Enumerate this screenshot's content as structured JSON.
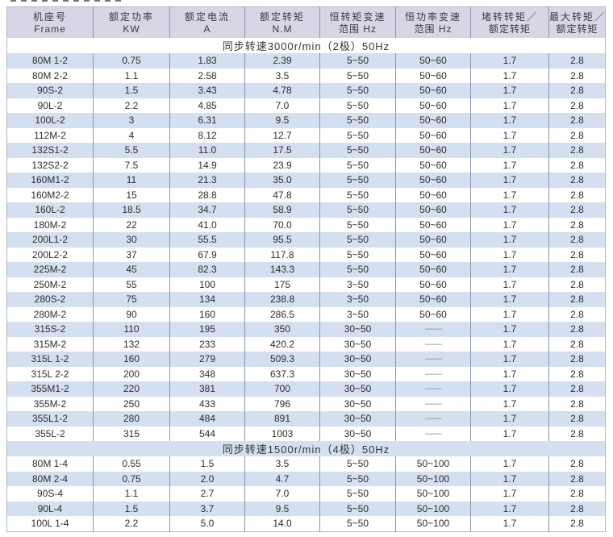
{
  "colors": {
    "header_bg": "#d8d5e7",
    "stripe_bg": "#d4dfef",
    "divider": "#8d95ad",
    "border": "#b2b6c4",
    "text": "#2e2e2e"
  },
  "table": {
    "columns": [
      {
        "key": "frame",
        "line1": "机座号",
        "line2": "Frame"
      },
      {
        "key": "rated-power",
        "line1": "额定功率",
        "line2": "KW"
      },
      {
        "key": "rated-current",
        "line1": "额定电流",
        "line2": "A"
      },
      {
        "key": "rated-torque",
        "line1": "额定转矩",
        "line2": "N.M"
      },
      {
        "key": "constant-torque-range",
        "line1": "恒转矩变速",
        "line2": "范围 Hz"
      },
      {
        "key": "constant-power-range",
        "line1": "恒功率变速",
        "line2": "范围 Hz"
      },
      {
        "key": "locked-rotor-torque-ratio",
        "line1": "堵转转矩／",
        "line2": "额定转矩"
      },
      {
        "key": "max-torque-ratio",
        "line1": "最大转矩／",
        "line2": "额定转矩"
      }
    ],
    "sections": [
      {
        "title": "同步转速3000r/min（2极）50Hz",
        "rows": [
          [
            "80M 1-2",
            "0.75",
            "1.83",
            "2.39",
            "5~50",
            "50~60",
            "1.7",
            "2.8"
          ],
          [
            "80M 2-2",
            "1.1",
            "2.58",
            "3.5",
            "5~50",
            "50~60",
            "1.7",
            "2.8"
          ],
          [
            "90S-2",
            "1.5",
            "3.43",
            "4.78",
            "5~50",
            "50~60",
            "1.7",
            "2.8"
          ],
          [
            "90L-2",
            "2.2",
            "4.85",
            "7.0",
            "5~50",
            "50~60",
            "1.7",
            "2.8"
          ],
          [
            "100L-2",
            "3",
            "6.31",
            "9.5",
            "5~50",
            "50~60",
            "1.7",
            "2.8"
          ],
          [
            "112M-2",
            "4",
            "8.12",
            "12.7",
            "5~50",
            "50~60",
            "1.7",
            "2.8"
          ],
          [
            "132S1-2",
            "5.5",
            "11.0",
            "17.5",
            "5~50",
            "50~60",
            "1.7",
            "2.8"
          ],
          [
            "132S2-2",
            "7.5",
            "14.9",
            "23.9",
            "5~50",
            "50~60",
            "1.7",
            "2.8"
          ],
          [
            "160M1-2",
            "11",
            "21.3",
            "35.0",
            "5~50",
            "50~60",
            "1.7",
            "2.8"
          ],
          [
            "160M2-2",
            "15",
            "28.8",
            "47.8",
            "5~50",
            "50~60",
            "1.7",
            "2.8"
          ],
          [
            "160L-2",
            "18.5",
            "34.7",
            "58.9",
            "5~50",
            "50~60",
            "1.7",
            "2.8"
          ],
          [
            "180M-2",
            "22",
            "41.0",
            "70.0",
            "5~50",
            "50~60",
            "1.7",
            "2.8"
          ],
          [
            "200L1-2",
            "30",
            "55.5",
            "95.5",
            "5~50",
            "50~60",
            "1.7",
            "2.8"
          ],
          [
            "200L2-2",
            "37",
            "67.9",
            "117.8",
            "5~50",
            "50~60",
            "1.7",
            "2.8"
          ],
          [
            "225M-2",
            "45",
            "82.3",
            "143.3",
            "5~50",
            "50~60",
            "1.7",
            "2.8"
          ],
          [
            "250M-2",
            "55",
            "100",
            "175",
            "3~50",
            "50~60",
            "1.7",
            "2.8"
          ],
          [
            "280S-2",
            "75",
            "134",
            "238.8",
            "3~50",
            "50~60",
            "1.7",
            "2.8"
          ],
          [
            "280M-2",
            "90",
            "160",
            "286.5",
            "3~50",
            "50~60",
            "1.7",
            "2.8"
          ],
          [
            "315S-2",
            "110",
            "195",
            "350",
            "30~50",
            "——",
            "1.7",
            "2.8"
          ],
          [
            "315M-2",
            "132",
            "233",
            "420.2",
            "30~50",
            "——",
            "1.7",
            "2.8"
          ],
          [
            "315L 1-2",
            "160",
            "279",
            "509.3",
            "30~50",
            "——",
            "1.7",
            "2.8"
          ],
          [
            "315L 2-2",
            "200",
            "348",
            "637.3",
            "30~50",
            "——",
            "1.7",
            "2.8"
          ],
          [
            "355M1-2",
            "220",
            "381",
            "700",
            "30~50",
            "——",
            "1.7",
            "2.8"
          ],
          [
            "355M-2",
            "250",
            "433",
            "796",
            "30~50",
            "——",
            "1.7",
            "2.8"
          ],
          [
            "355L1-2",
            "280",
            "484",
            "891",
            "30~50",
            "——",
            "1.7",
            "2.8"
          ],
          [
            "355L-2",
            "315",
            "544",
            "1003",
            "30~50",
            "——",
            "1.7",
            "2.8"
          ]
        ]
      },
      {
        "title": "同步转速1500r/min（4极）50Hz",
        "rows": [
          [
            "80M 1-4",
            "0.55",
            "1.5",
            "3.5",
            "5~50",
            "50~100",
            "1.7",
            "2.8"
          ],
          [
            "80M 2-4",
            "0.75",
            "2.0",
            "4.7",
            "5~50",
            "50~100",
            "1.7",
            "2.8"
          ],
          [
            "90S-4",
            "1.1",
            "2.7",
            "7.0",
            "5~50",
            "50~100",
            "1.7",
            "2.8"
          ],
          [
            "90L-4",
            "1.5",
            "3.7",
            "9.5",
            "5~50",
            "50~100",
            "1.7",
            "2.8"
          ],
          [
            "100L 1-4",
            "2.2",
            "5.0",
            "14.0",
            "5~50",
            "50~100",
            "1.7",
            "2.8"
          ]
        ]
      }
    ]
  }
}
